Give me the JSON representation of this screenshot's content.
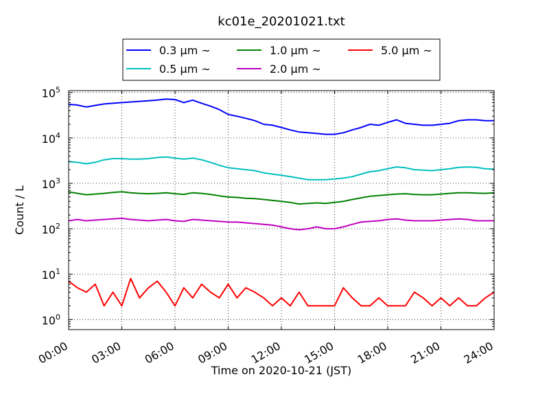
{
  "chart_data": {
    "type": "line",
    "title": "kc01e_20201021.txt",
    "xlabel": "Time on 2020-10-21 (JST)",
    "ylabel": "Count / L",
    "yscale": "log",
    "xlim": [
      "00:00",
      "24:00"
    ],
    "ylim": [
      0.6,
      110000
    ],
    "x_ticks": [
      "00:00",
      "03:00",
      "06:00",
      "09:00",
      "12:00",
      "15:00",
      "18:00",
      "21:00",
      "24:00"
    ],
    "y_ticks": [
      {
        "value": 1,
        "base": "10",
        "exp": "0"
      },
      {
        "value": 10,
        "base": "10",
        "exp": "1"
      },
      {
        "value": 100,
        "base": "10",
        "exp": "2"
      },
      {
        "value": 1000,
        "base": "10",
        "exp": "3"
      },
      {
        "value": 10000,
        "base": "10",
        "exp": "4"
      },
      {
        "value": 100000,
        "base": "10",
        "exp": "5"
      }
    ],
    "grid": true,
    "legend_position": "top-center",
    "x": [
      "00:00",
      "00:30",
      "01:00",
      "01:30",
      "02:00",
      "02:30",
      "03:00",
      "03:30",
      "04:00",
      "04:30",
      "05:00",
      "05:30",
      "06:00",
      "06:30",
      "07:00",
      "07:30",
      "08:00",
      "08:30",
      "09:00",
      "09:30",
      "10:00",
      "10:30",
      "11:00",
      "11:30",
      "12:00",
      "12:30",
      "13:00",
      "13:30",
      "14:00",
      "14:30",
      "15:00",
      "15:30",
      "16:00",
      "16:30",
      "17:00",
      "17:30",
      "18:00",
      "18:30",
      "19:00",
      "19:30",
      "20:00",
      "20:30",
      "21:00",
      "21:30",
      "22:00",
      "22:30",
      "23:00",
      "23:30",
      "24:00"
    ],
    "series": [
      {
        "name": "0.3 μm ~",
        "color": "#0000ff",
        "values": [
          55000,
          53000,
          48000,
          52000,
          56000,
          58000,
          60000,
          62000,
          64000,
          66000,
          68000,
          72000,
          70000,
          60000,
          68000,
          58000,
          50000,
          42000,
          33000,
          30000,
          27000,
          24000,
          20000,
          19000,
          17000,
          15000,
          13500,
          13000,
          12500,
          12000,
          12000,
          13000,
          15000,
          17000,
          20000,
          19000,
          22000,
          25000,
          21000,
          20000,
          19000,
          19000,
          20000,
          21000,
          24000,
          25000,
          25000,
          24000,
          24000
        ]
      },
      {
        "name": "0.5 μm ~",
        "color": "#00bfbf",
        "values": [
          3000,
          2900,
          2700,
          2900,
          3300,
          3500,
          3500,
          3400,
          3400,
          3500,
          3700,
          3800,
          3600,
          3400,
          3600,
          3300,
          2900,
          2500,
          2200,
          2100,
          2000,
          1900,
          1700,
          1600,
          1500,
          1400,
          1300,
          1200,
          1200,
          1200,
          1250,
          1300,
          1400,
          1600,
          1800,
          1900,
          2100,
          2300,
          2200,
          2000,
          1950,
          1900,
          2000,
          2100,
          2250,
          2300,
          2250,
          2100,
          2050
        ]
      },
      {
        "name": "1.0 μm ~",
        "color": "#008000",
        "values": [
          650,
          600,
          560,
          580,
          600,
          630,
          650,
          620,
          600,
          590,
          600,
          620,
          590,
          570,
          620,
          600,
          570,
          530,
          500,
          490,
          470,
          460,
          440,
          420,
          400,
          380,
          350,
          360,
          370,
          360,
          380,
          400,
          440,
          480,
          520,
          540,
          560,
          580,
          590,
          570,
          560,
          560,
          580,
          600,
          620,
          620,
          610,
          600,
          620
        ]
      },
      {
        "name": "2.0 μm ~",
        "color": "#bf00bf",
        "values": [
          150,
          160,
          150,
          155,
          160,
          165,
          170,
          160,
          155,
          150,
          155,
          160,
          150,
          145,
          160,
          155,
          150,
          145,
          140,
          140,
          135,
          130,
          125,
          120,
          110,
          100,
          95,
          100,
          110,
          100,
          100,
          110,
          125,
          140,
          145,
          150,
          160,
          165,
          155,
          150,
          150,
          150,
          155,
          160,
          165,
          160,
          150,
          150,
          150
        ]
      },
      {
        "name": "5.0 μm ~",
        "color": "#ff0000",
        "values": [
          7,
          5,
          4,
          6,
          2,
          4,
          2,
          8,
          3,
          5,
          7,
          4,
          2,
          5,
          3,
          6,
          4,
          3,
          6,
          3,
          5,
          4,
          3,
          2,
          3,
          2,
          4,
          2,
          2,
          2,
          2,
          5,
          3,
          2,
          2,
          3,
          2,
          2,
          2,
          4,
          3,
          2,
          3,
          2,
          3,
          2,
          2,
          3,
          4
        ]
      }
    ]
  }
}
